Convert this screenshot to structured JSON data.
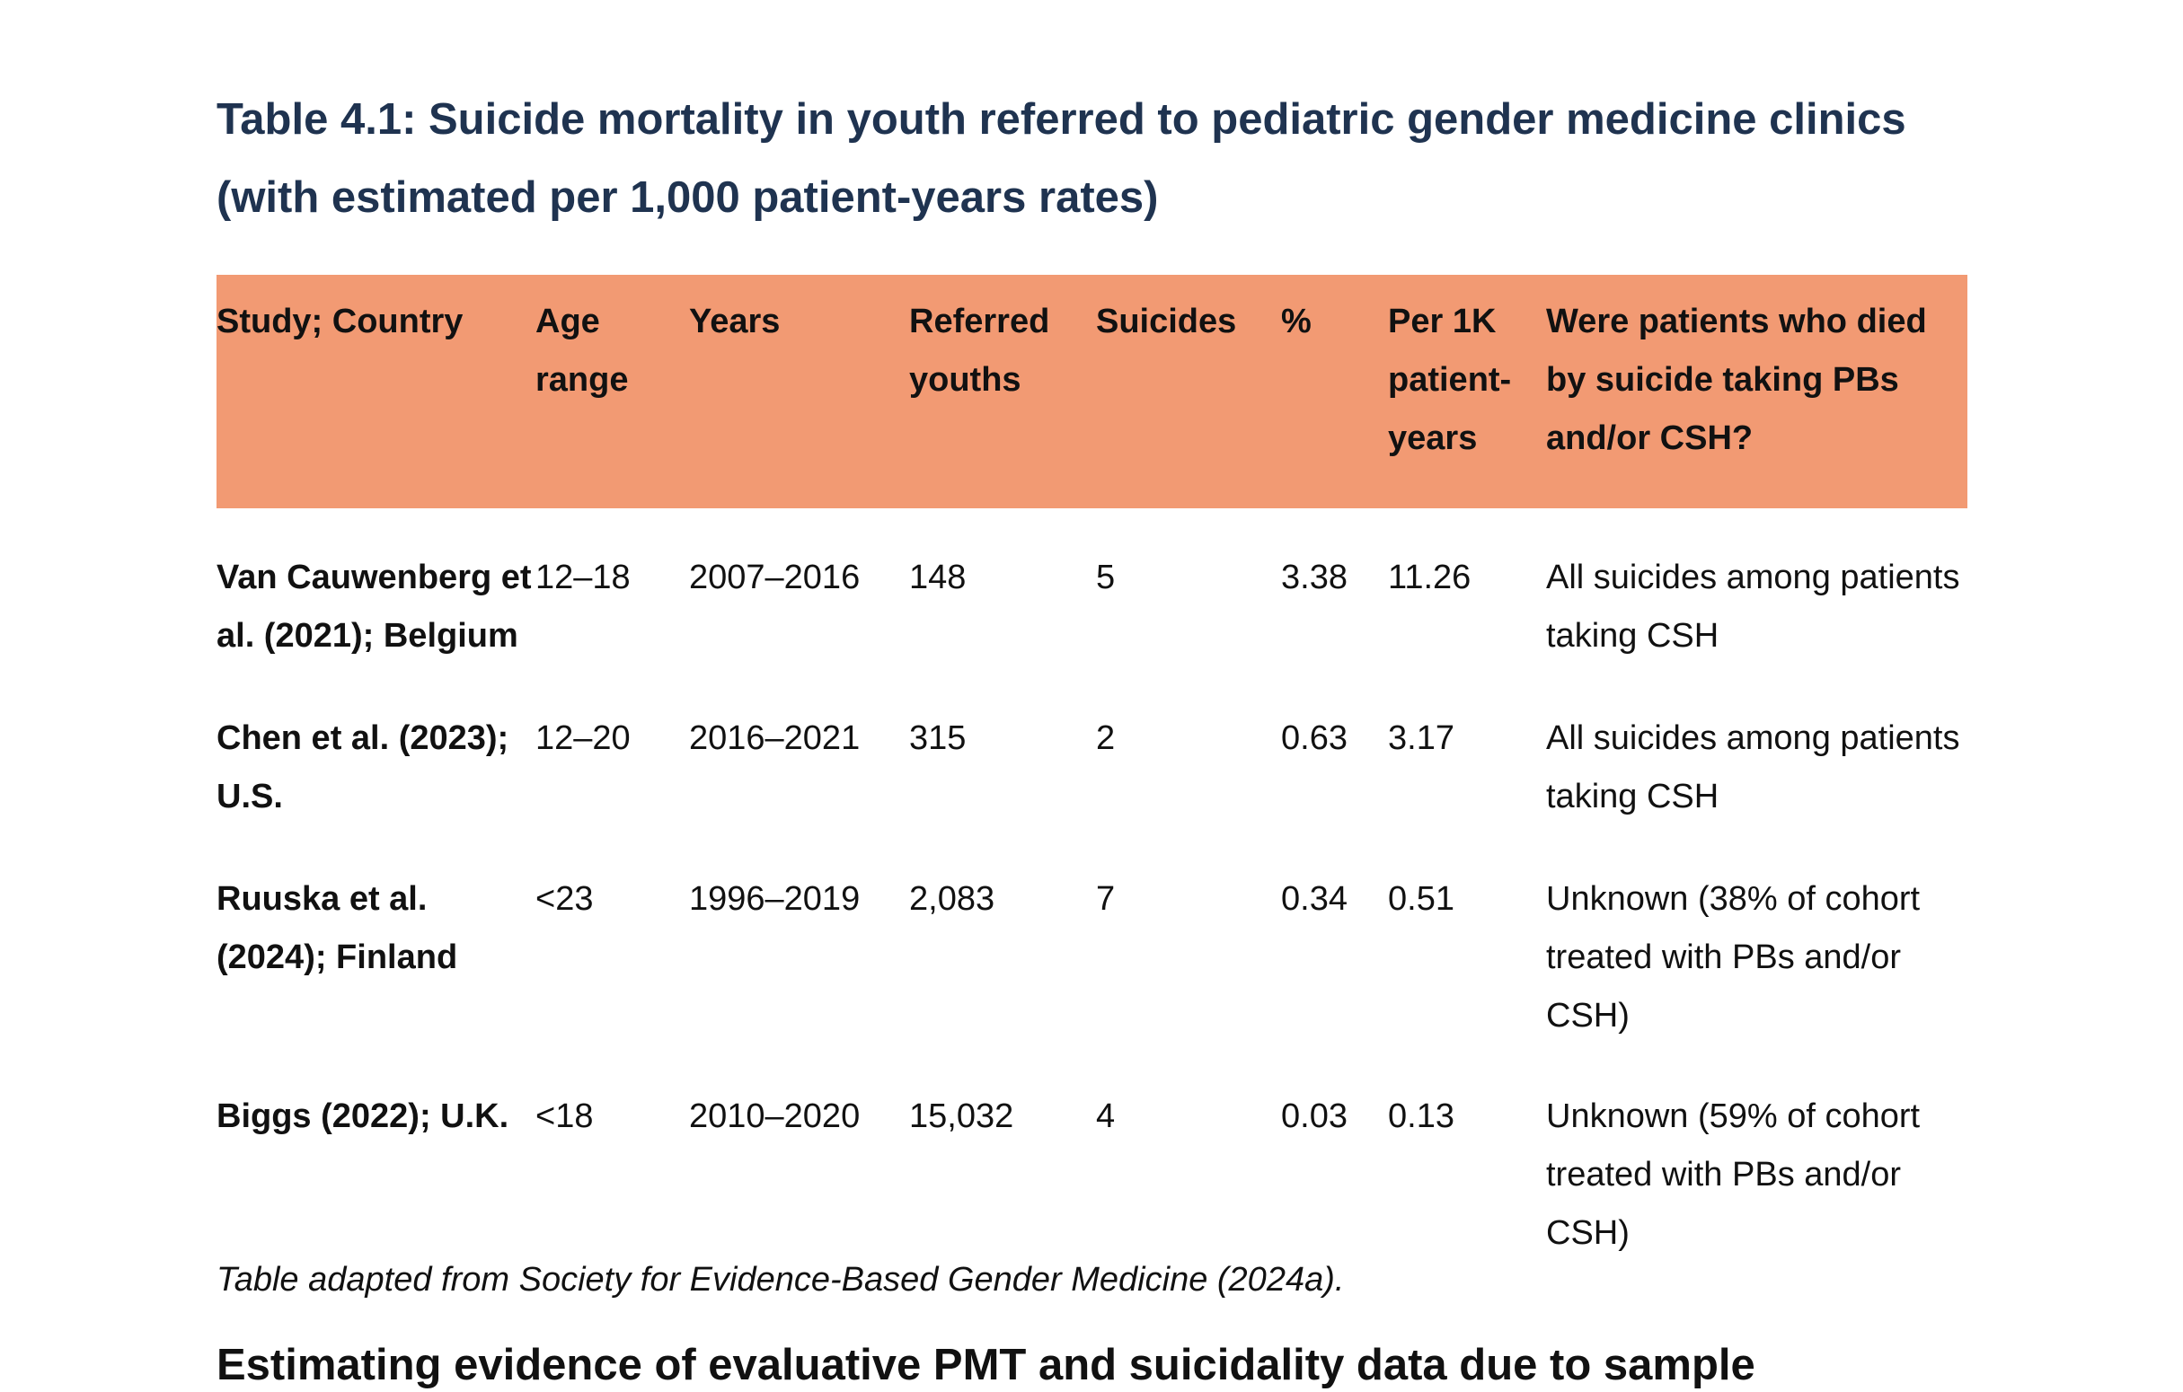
{
  "title_lines": [
    "Table 4.1: Suicide mortality in youth referred to pediatric gender medicine clinics",
    "(with estimated per 1,000 patient-years rates)"
  ],
  "colors": {
    "title": "#1f3350",
    "header_background": "#f29a73",
    "text": "#111111"
  },
  "table": {
    "headers": [
      "Study; Country",
      "Age range",
      "Years",
      "Referred youths",
      "Suicides",
      "%",
      "Per 1K patient-years",
      "Were patients who died by suicide taking PBs and/or CSH?"
    ],
    "rows": [
      [
        "Van Cauwenberg et al. (2021); Belgium",
        "12–18",
        "2007–2016",
        "148",
        "5",
        "3.38",
        "11.26",
        "All suicides among patients taking CSH"
      ],
      [
        "Chen et al. (2023); U.S.",
        "12–20",
        "2016–2021",
        "315",
        "2",
        "0.63",
        "3.17",
        "All suicides among patients taking CSH"
      ],
      [
        "Ruuska et al. (2024); Finland",
        "<23",
        "1996–2019",
        "2,083",
        "7",
        "0.34",
        "0.51",
        "Unknown (38% of cohort treated with PBs and/or CSH)"
      ],
      [
        "Biggs (2022); U.K.",
        "<18",
        "2010–2020",
        "15,032",
        "4",
        "0.03",
        "0.13",
        "Unknown (59% of cohort treated with PBs and/or CSH)"
      ]
    ]
  },
  "caption": "Table adapted from Society for Evidence-Based Gender Medicine (2024a).",
  "cutoff_text": "Estimating evidence of evaluative PMT and suicidality data due to sample"
}
